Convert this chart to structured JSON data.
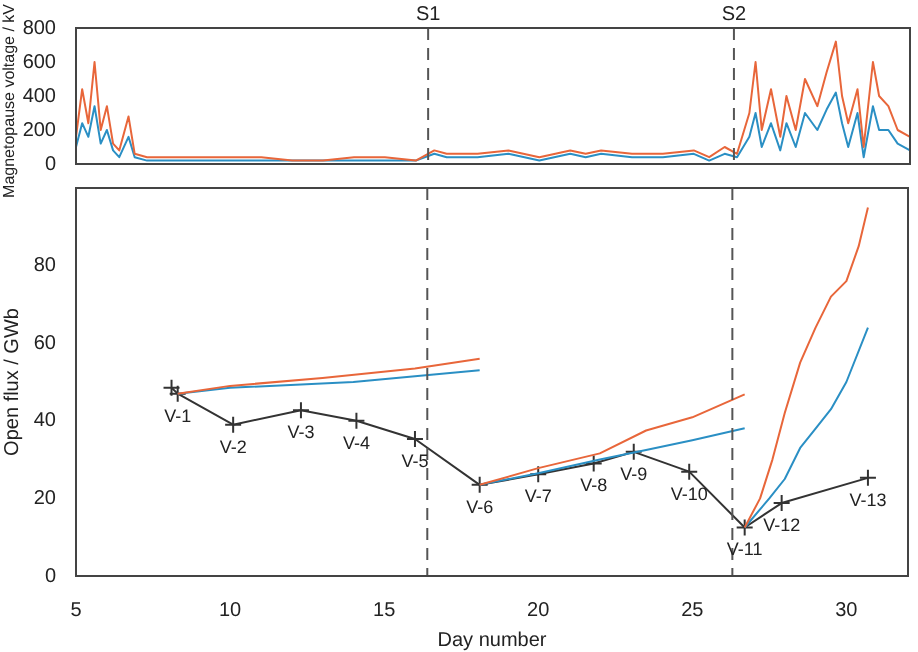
{
  "chart_data": [
    {
      "type": "line",
      "ylabel": "Magnetopause voltage / kV",
      "xlim": [
        5,
        32
      ],
      "ylim": [
        0,
        800
      ],
      "yticks": [
        0,
        200,
        400,
        600,
        800
      ],
      "tick_labels": "y",
      "grid": false,
      "legend": false,
      "ref_lines": [
        {
          "axis": "x",
          "value": 16.4,
          "label": "S1",
          "color": "#555555",
          "line_style": "dashed"
        },
        {
          "axis": "x",
          "value": 26.3,
          "label": "S2",
          "color": "#555555",
          "line_style": "dashed"
        }
      ],
      "series": [
        {
          "color": "#e8663a",
          "marker": "none",
          "x": [
            5,
            5.2,
            5.4,
            5.6,
            5.8,
            6,
            6.2,
            6.4,
            6.7,
            6.9,
            7.3,
            8,
            9,
            10,
            11,
            12,
            13,
            14,
            15,
            16,
            16.6,
            17,
            18,
            19,
            20,
            21,
            21.5,
            22,
            23,
            24,
            25,
            25.5,
            26,
            26.4,
            26.8,
            27,
            27.2,
            27.5,
            27.8,
            28,
            28.3,
            28.6,
            29,
            29.3,
            29.6,
            29.8,
            30,
            30.3,
            30.5,
            30.8,
            31,
            31.3,
            31.6,
            32
          ],
          "values": [
            160,
            440,
            240,
            600,
            200,
            340,
            120,
            80,
            280,
            60,
            40,
            40,
            40,
            40,
            40,
            20,
            20,
            40,
            40,
            20,
            80,
            60,
            60,
            80,
            40,
            80,
            60,
            80,
            60,
            60,
            80,
            40,
            100,
            60,
            300,
            600,
            200,
            440,
            160,
            400,
            200,
            500,
            340,
            540,
            720,
            400,
            240,
            440,
            100,
            600,
            400,
            340,
            200,
            160
          ]
        },
        {
          "color": "#2a8fc4",
          "marker": "none",
          "x": [
            5,
            5.2,
            5.4,
            5.6,
            5.8,
            6,
            6.2,
            6.4,
            6.7,
            6.9,
            7.3,
            8,
            9,
            10,
            11,
            12,
            13,
            14,
            15,
            16,
            16.6,
            17,
            18,
            19,
            20,
            21,
            21.5,
            22,
            23,
            24,
            25,
            25.5,
            26,
            26.4,
            26.8,
            27,
            27.2,
            27.5,
            27.8,
            28,
            28.3,
            28.6,
            29,
            29.3,
            29.6,
            29.8,
            30,
            30.3,
            30.5,
            30.8,
            31,
            31.3,
            31.6,
            32
          ],
          "values": [
            100,
            240,
            160,
            340,
            120,
            200,
            80,
            40,
            160,
            40,
            20,
            20,
            20,
            20,
            20,
            20,
            20,
            20,
            20,
            20,
            60,
            40,
            40,
            60,
            20,
            60,
            40,
            60,
            40,
            40,
            60,
            20,
            60,
            40,
            160,
            300,
            100,
            240,
            80,
            240,
            100,
            300,
            200,
            320,
            420,
            240,
            100,
            300,
            40,
            340,
            200,
            200,
            120,
            80
          ]
        }
      ]
    },
    {
      "type": "line",
      "xlabel": "Day number",
      "ylabel": "Open flux / GWb",
      "xlim": [
        5,
        32
      ],
      "xticks": [
        5,
        10,
        15,
        20,
        25,
        30
      ],
      "ylim": [
        0,
        100
      ],
      "yticks": [
        0,
        20,
        40,
        60,
        80
      ],
      "grid": false,
      "legend": false,
      "ref_lines": [
        {
          "axis": "x",
          "value": 16.4,
          "color": "#555555",
          "line_style": "dashed"
        },
        {
          "axis": "x",
          "value": 26.3,
          "color": "#555555",
          "line_style": "dashed"
        }
      ],
      "series": [
        {
          "color": "#e8663a",
          "marker": "none",
          "x": [
            8.3,
            10,
            13,
            16,
            18.1
          ],
          "values": [
            47,
            49,
            51,
            53.5,
            56
          ]
        },
        {
          "color": "#e8663a",
          "marker": "none",
          "x": [
            18.1,
            20,
            22,
            23.5,
            25,
            26.7
          ],
          "values": [
            23.5,
            27.8,
            31.6,
            37.5,
            40.9,
            46.8
          ]
        },
        {
          "color": "#e8663a",
          "marker": "none",
          "x": [
            26.7,
            27.2,
            27.6,
            28,
            28.5,
            29,
            29.5,
            30,
            30.4,
            30.7
          ],
          "values": [
            12.5,
            20,
            30,
            42,
            55,
            64,
            72,
            76,
            85,
            95
          ]
        },
        {
          "color": "#2a8fc4",
          "marker": "none",
          "x": [
            8.3,
            10,
            14,
            16,
            18.1
          ],
          "values": [
            47,
            48.5,
            50,
            51.5,
            53
          ]
        },
        {
          "color": "#2a8fc4",
          "marker": "none",
          "x": [
            18.1,
            20,
            22,
            23.5,
            25,
            26.7
          ],
          "values": [
            23.5,
            26.5,
            30,
            32.5,
            35,
            38.1
          ]
        },
        {
          "color": "#2a8fc4",
          "marker": "none",
          "x": [
            26.7,
            27.5,
            28,
            28.5,
            29,
            29.5,
            30,
            30.7
          ],
          "values": [
            12.5,
            20,
            25,
            33,
            38,
            43,
            50,
            64
          ]
        },
        {
          "color": "#333333",
          "marker": "cross",
          "x": [
            8.1,
            8.3,
            10.1,
            12.3,
            14.1,
            16,
            18.1,
            20,
            21.8,
            23.1,
            24.9,
            26.7,
            27.9,
            30.7
          ],
          "values": [
            48.5,
            47,
            39,
            42.7,
            40,
            35.3,
            23.5,
            26.2,
            29,
            32,
            26.9,
            12.5,
            18.8,
            25.3
          ]
        }
      ],
      "annotations": [
        {
          "text": "V-1",
          "x": 8.3,
          "y": 47
        },
        {
          "text": "V-2",
          "x": 10.1,
          "y": 39
        },
        {
          "text": "V-3",
          "x": 12.3,
          "y": 42.7
        },
        {
          "text": "V-4",
          "x": 14.1,
          "y": 40
        },
        {
          "text": "V-5",
          "x": 16,
          "y": 35.3
        },
        {
          "text": "V-6",
          "x": 18.1,
          "y": 23.5
        },
        {
          "text": "V-7",
          "x": 20,
          "y": 26.2
        },
        {
          "text": "V-8",
          "x": 21.8,
          "y": 29
        },
        {
          "text": "V-9",
          "x": 23.1,
          "y": 32
        },
        {
          "text": "V-10",
          "x": 24.9,
          "y": 26.9
        },
        {
          "text": "V-11",
          "x": 26.7,
          "y": 12.5
        },
        {
          "text": "V-12",
          "x": 27.9,
          "y": 18.8
        },
        {
          "text": "V-13",
          "x": 30.7,
          "y": 25.3
        }
      ]
    }
  ]
}
